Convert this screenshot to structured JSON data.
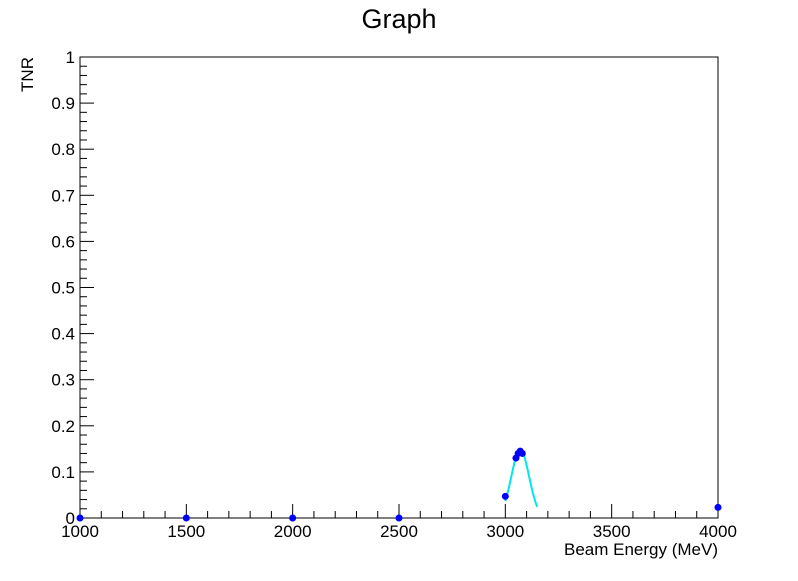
{
  "chart_data": {
    "type": "scatter",
    "title": "Graph",
    "xlabel": "Beam Energy (MeV)",
    "ylabel": "TNR",
    "xlim": [
      1000,
      4000
    ],
    "ylim": [
      0,
      1
    ],
    "x_ticks": [
      1000,
      1500,
      2000,
      2500,
      3000,
      3500,
      4000
    ],
    "y_ticks": [
      0,
      0.1,
      0.2,
      0.3,
      0.4,
      0.5,
      0.6,
      0.7,
      0.8,
      0.9,
      1
    ],
    "x_tick_labels": [
      "1000",
      "1500",
      "2000",
      "2500",
      "3000",
      "3500",
      "4000"
    ],
    "y_tick_labels": [
      "0",
      "0.1",
      "0.2",
      "0.3",
      "0.4",
      "0.5",
      "0.6",
      "0.7",
      "0.8",
      "0.9",
      "1"
    ],
    "grid": false,
    "legend": "none",
    "series": [
      {
        "kind": "markers",
        "color": "#0000ff",
        "points": [
          {
            "x": 1000,
            "y": 0.0
          },
          {
            "x": 1500,
            "y": 0.0
          },
          {
            "x": 2000,
            "y": 0.0
          },
          {
            "x": 2500,
            "y": 0.0
          },
          {
            "x": 3000,
            "y": 0.047
          },
          {
            "x": 3050,
            "y": 0.13
          },
          {
            "x": 3060,
            "y": 0.14
          },
          {
            "x": 3070,
            "y": 0.145
          },
          {
            "x": 3080,
            "y": 0.14
          },
          {
            "x": 4000,
            "y": 0.023
          }
        ]
      },
      {
        "kind": "fit-curve",
        "color": "#00e5ee",
        "center": 3070,
        "peak": 0.148,
        "sigma": 42,
        "x_range": [
          3000,
          3150
        ]
      }
    ]
  }
}
